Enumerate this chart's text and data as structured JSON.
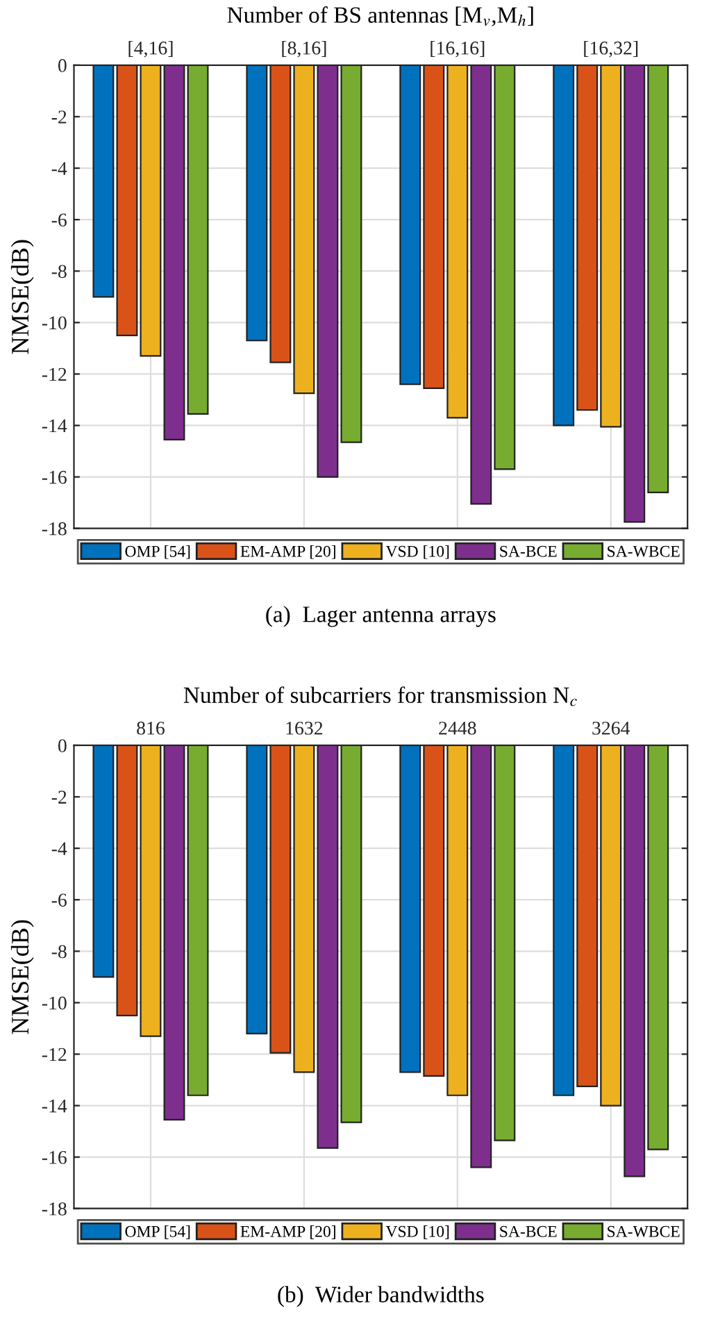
{
  "chart_data": [
    {
      "type": "bar",
      "title": "Number of BS antennas [M$_{v}$,M$_{h}$]",
      "ylabel": "NMSE(dB)",
      "categories": [
        "[4,16]",
        "[8,16]",
        "[16,16]",
        "[16,32]"
      ],
      "series": [
        {
          "name": "OMP [54]",
          "color": "#0072bd",
          "values": [
            -9.0,
            -10.7,
            -12.4,
            -14.0
          ]
        },
        {
          "name": "EM-AMP [20]",
          "color": "#d95319",
          "values": [
            -10.5,
            -11.55,
            -12.55,
            -13.4
          ]
        },
        {
          "name": "VSD [10]",
          "color": "#edb120",
          "values": [
            -11.3,
            -12.75,
            -13.7,
            -14.05
          ]
        },
        {
          "name": "SA-BCE",
          "color": "#7e2f8e",
          "values": [
            -14.55,
            -16.0,
            -17.05,
            -17.75
          ]
        },
        {
          "name": "SA-WBCE",
          "color": "#77ac30",
          "values": [
            -13.55,
            -14.65,
            -15.7,
            -16.6
          ]
        }
      ],
      "ylim": [
        -18,
        0
      ],
      "yticks": [
        -18,
        -16,
        -14,
        -12,
        -10,
        -8,
        -6,
        -4,
        -2,
        0
      ],
      "grid": true,
      "legend": "bottom",
      "annotations": [
        "(a)  Lager antenna arrays"
      ]
    },
    {
      "type": "bar",
      "title": "Number of subcarriers for transmission N$_{c}$",
      "ylabel": "NMSE(dB)",
      "categories": [
        "816",
        "1632",
        "2448",
        "3264"
      ],
      "series": [
        {
          "name": "OMP [54]",
          "color": "#0072bd",
          "values": [
            -9.0,
            -11.2,
            -12.7,
            -13.6
          ]
        },
        {
          "name": "EM-AMP [20]",
          "color": "#d95319",
          "values": [
            -10.5,
            -11.95,
            -12.85,
            -13.25
          ]
        },
        {
          "name": "VSD [10]",
          "color": "#edb120",
          "values": [
            -11.3,
            -12.7,
            -13.6,
            -14.0
          ]
        },
        {
          "name": "SA-BCE",
          "color": "#7e2f8e",
          "values": [
            -14.55,
            -15.65,
            -16.4,
            -16.75
          ]
        },
        {
          "name": "SA-WBCE",
          "color": "#77ac30",
          "values": [
            -13.6,
            -14.65,
            -15.35,
            -15.7
          ]
        }
      ],
      "ylim": [
        -18,
        0
      ],
      "yticks": [
        -18,
        -16,
        -14,
        -12,
        -10,
        -8,
        -6,
        -4,
        -2,
        0
      ],
      "grid": true,
      "legend": "bottom",
      "annotations": [
        "(b)  Wider bandwidths"
      ]
    }
  ]
}
